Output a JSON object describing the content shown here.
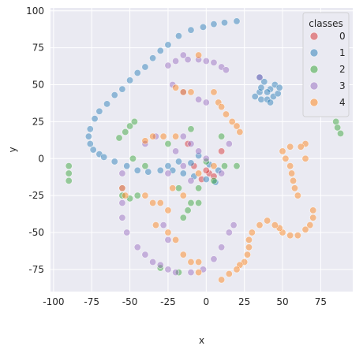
{
  "chart_data": {
    "type": "scatter",
    "title": "",
    "xlabel": "x",
    "ylabel": "y",
    "xlim": [
      -102,
      96
    ],
    "ylim": [
      -90,
      102
    ],
    "xticks": [
      -100,
      -75,
      -50,
      -25,
      0,
      25,
      50,
      75
    ],
    "yticks": [
      -75,
      -50,
      -25,
      0,
      25,
      50,
      75,
      100
    ],
    "grid": true,
    "legend": {
      "title": "classes",
      "placement": "top-right"
    },
    "series": [
      {
        "name": "0",
        "color": "#d62728",
        "points": [
          [
            2,
            -10
          ],
          [
            5,
            -12
          ],
          [
            -3,
            -14
          ],
          [
            -8,
            -5
          ],
          [
            10,
            5
          ],
          [
            -12,
            10
          ],
          [
            0,
            -8
          ]
        ]
      },
      {
        "name": "1",
        "color": "#1f77b4",
        "points": [
          [
            20,
            93
          ],
          [
            12,
            92
          ],
          [
            5,
            91
          ],
          [
            -2,
            89
          ],
          [
            -10,
            87
          ],
          [
            -18,
            83
          ],
          [
            -25,
            77
          ],
          [
            -30,
            73
          ],
          [
            -35,
            68
          ],
          [
            -40,
            62
          ],
          [
            -45,
            58
          ],
          [
            -50,
            53
          ],
          [
            -55,
            47
          ],
          [
            -60,
            43
          ],
          [
            -65,
            37
          ],
          [
            -70,
            32
          ],
          [
            -73,
            27
          ],
          [
            -76,
            20
          ],
          [
            -77,
            15
          ],
          [
            -76,
            10
          ],
          [
            -74,
            6
          ],
          [
            -70,
            3
          ],
          [
            -67,
            1
          ],
          [
            -60,
            -2
          ],
          [
            -52,
            -5
          ],
          [
            -45,
            -8
          ],
          [
            -38,
            -9
          ],
          [
            -30,
            -8
          ],
          [
            -22,
            -8
          ],
          [
            -15,
            -10
          ],
          [
            -8,
            -12
          ],
          [
            0,
            -14
          ],
          [
            6,
            -16
          ],
          [
            -10,
            -3
          ],
          [
            -5,
            2
          ],
          [
            2,
            -4
          ],
          [
            8,
            -8
          ],
          [
            -18,
            -2
          ],
          [
            -25,
            -5
          ],
          [
            35,
            55
          ],
          [
            38,
            52
          ],
          [
            45,
            50
          ],
          [
            42,
            47
          ],
          [
            40,
            45
          ],
          [
            35,
            45
          ],
          [
            32,
            42
          ],
          [
            36,
            40
          ],
          [
            44,
            42
          ],
          [
            47,
            44
          ],
          [
            40,
            40
          ],
          [
            42,
            38
          ],
          [
            36,
            48
          ],
          [
            48,
            48
          ]
        ]
      },
      {
        "name": "2",
        "color": "#2ca02c",
        "points": [
          [
            -90,
            -5
          ],
          [
            -90,
            -10
          ],
          [
            -90,
            -15
          ],
          [
            -57,
            14
          ],
          [
            -53,
            18
          ],
          [
            -50,
            22
          ],
          [
            -47,
            25
          ],
          [
            -55,
            -25
          ],
          [
            -50,
            -27
          ],
          [
            -45,
            -25
          ],
          [
            -48,
            0
          ],
          [
            -40,
            -5
          ],
          [
            -15,
            -40
          ],
          [
            -12,
            -35
          ],
          [
            -10,
            -30
          ],
          [
            -5,
            -30
          ],
          [
            -18,
            -20
          ],
          [
            -5,
            -20
          ],
          [
            5,
            -15
          ],
          [
            10,
            15
          ],
          [
            12,
            -5
          ],
          [
            20,
            -5
          ],
          [
            -10,
            20
          ],
          [
            85,
            25
          ],
          [
            86,
            21
          ],
          [
            88,
            17
          ],
          [
            -18,
            -77
          ],
          [
            -30,
            -74
          ],
          [
            0,
            -2
          ],
          [
            -25,
            10
          ]
        ]
      },
      {
        "name": "3",
        "color": "#9467bd",
        "points": [
          [
            -15,
            70
          ],
          [
            -20,
            66
          ],
          [
            -25,
            63
          ],
          [
            -12,
            67
          ],
          [
            -5,
            67
          ],
          [
            0,
            66
          ],
          [
            5,
            65
          ],
          [
            10,
            62
          ],
          [
            13,
            60
          ],
          [
            -22,
            50
          ],
          [
            -15,
            45
          ],
          [
            -5,
            40
          ],
          [
            0,
            38
          ],
          [
            -55,
            -10
          ],
          [
            -55,
            -20
          ],
          [
            -55,
            -30
          ],
          [
            -55,
            -40
          ],
          [
            -52,
            -50
          ],
          [
            -45,
            -60
          ],
          [
            -40,
            -65
          ],
          [
            -35,
            -70
          ],
          [
            -30,
            -72
          ],
          [
            -25,
            -75
          ],
          [
            -20,
            -77
          ],
          [
            -10,
            -77
          ],
          [
            -2,
            -75
          ],
          [
            5,
            -68
          ],
          [
            10,
            -60
          ],
          [
            15,
            -50
          ],
          [
            18,
            -45
          ],
          [
            -15,
            15
          ],
          [
            -10,
            10
          ],
          [
            -5,
            5
          ],
          [
            0,
            0
          ],
          [
            -20,
            5
          ],
          [
            -15,
            -5
          ],
          [
            -10,
            -15
          ],
          [
            10,
            -10
          ],
          [
            -28,
            -45
          ],
          [
            -25,
            -55
          ],
          [
            -33,
            15
          ],
          [
            -40,
            10
          ],
          [
            -25,
            -10
          ],
          [
            15,
            10
          ],
          [
            35,
            55
          ]
        ]
      },
      {
        "name": "4",
        "color": "#ff7f0e",
        "points": [
          [
            -5,
            70
          ],
          [
            -20,
            48
          ],
          [
            -15,
            45
          ],
          [
            -10,
            45
          ],
          [
            5,
            45
          ],
          [
            8,
            38
          ],
          [
            10,
            35
          ],
          [
            13,
            30
          ],
          [
            17,
            25
          ],
          [
            20,
            22
          ],
          [
            22,
            18
          ],
          [
            -40,
            12
          ],
          [
            -35,
            15
          ],
          [
            -28,
            15
          ],
          [
            -20,
            15
          ],
          [
            -55,
            -20
          ],
          [
            -53,
            -25
          ],
          [
            -40,
            -25
          ],
          [
            -35,
            -30
          ],
          [
            -30,
            -30
          ],
          [
            -33,
            -45
          ],
          [
            -25,
            -50
          ],
          [
            -20,
            -55
          ],
          [
            -15,
            -65
          ],
          [
            -10,
            -70
          ],
          [
            -5,
            -77
          ],
          [
            -25,
            -35
          ],
          [
            50,
            5
          ],
          [
            52,
            0
          ],
          [
            55,
            -5
          ],
          [
            56,
            -10
          ],
          [
            57,
            -15
          ],
          [
            58,
            -20
          ],
          [
            60,
            -25
          ],
          [
            65,
            10
          ],
          [
            62,
            8
          ],
          [
            55,
            8
          ],
          [
            65,
            0
          ],
          [
            70,
            -35
          ],
          [
            70,
            -40
          ],
          [
            68,
            -45
          ],
          [
            65,
            -48
          ],
          [
            60,
            -52
          ],
          [
            55,
            -52
          ],
          [
            50,
            -50
          ],
          [
            48,
            -47
          ],
          [
            45,
            -45
          ],
          [
            40,
            -42
          ],
          [
            35,
            -45
          ],
          [
            30,
            -50
          ],
          [
            28,
            -55
          ],
          [
            28,
            -60
          ],
          [
            27,
            -65
          ],
          [
            25,
            -70
          ],
          [
            22,
            -72
          ],
          [
            20,
            -75
          ],
          [
            15,
            -78
          ],
          [
            10,
            -82
          ],
          [
            -5,
            -70
          ],
          [
            -5,
            -10
          ],
          [
            5,
            -5
          ],
          [
            -22,
            -20
          ],
          [
            -15,
            -25
          ]
        ]
      }
    ]
  }
}
